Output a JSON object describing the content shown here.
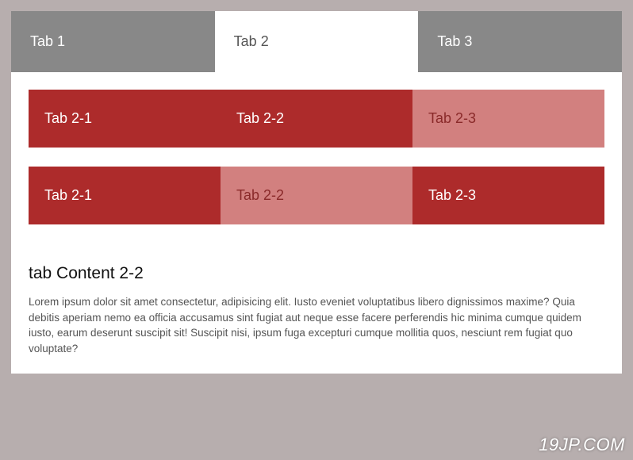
{
  "colors": {
    "page_bg": "#b7aeae",
    "tab_inactive_bg": "#888888",
    "tab_inactive_text": "#ffffff",
    "tab_active_bg": "#ffffff",
    "tab_active_text": "#555555",
    "inner_bg": "#ad2b2b",
    "inner_text": "#ffffff",
    "inner_light_bg": "#d2807f",
    "inner_light_text": "#8a2a2a",
    "content_bg": "#ffffff",
    "body_text": "#555555",
    "heading_text": "#111111"
  },
  "outer_tabs": [
    {
      "label": "Tab 1",
      "active": false
    },
    {
      "label": "Tab 2",
      "active": true
    },
    {
      "label": "Tab 3",
      "active": false
    }
  ],
  "inner_rows": [
    {
      "tabs": [
        {
          "label": "Tab 2-1",
          "light": false
        },
        {
          "label": "Tab 2-2",
          "light": false
        },
        {
          "label": "Tab 2-3",
          "light": true
        }
      ]
    },
    {
      "tabs": [
        {
          "label": "Tab 2-1",
          "light": false
        },
        {
          "label": "Tab 2-2",
          "light": true
        },
        {
          "label": "Tab 2-3",
          "light": false
        }
      ]
    }
  ],
  "content": {
    "heading": "tab Content 2-2",
    "body": "Lorem ipsum dolor sit amet consectetur, adipisicing elit. Iusto eveniet voluptatibus libero dignissimos maxime? Quia debitis aperiam nemo ea officia accusamus sint fugiat aut neque esse facere perferendis hic minima cumque quidem iusto, earum deserunt suscipit sit! Suscipit nisi, ipsum fuga excepturi cumque mollitia quos, nesciunt rem fugiat quo voluptate?"
  },
  "watermark": "19JP.COM"
}
